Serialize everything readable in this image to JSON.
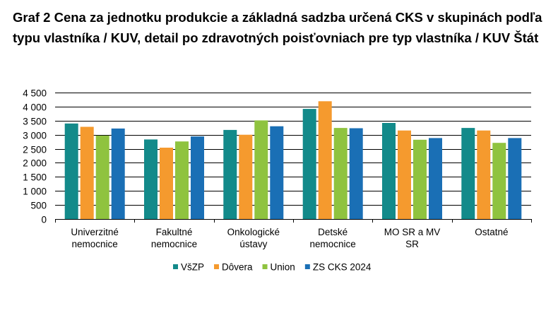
{
  "chart_data": {
    "type": "bar",
    "title": "Graf 2 Cena za jednotku produkcie a základná sadzba určená CKS v skupinách podľa typu vlastníka / KUV, detail po zdravotných poisťovniach pre typ vlastníka / KUV Štát",
    "xlabel": "",
    "ylabel": "",
    "ylim": [
      0,
      4500
    ],
    "yticks": [
      0,
      500,
      1000,
      1500,
      2000,
      2500,
      3000,
      3500,
      4000,
      4500
    ],
    "ytick_labels": [
      "0",
      "500",
      "1 000",
      "1 500",
      "2 000",
      "2 500",
      "3 000",
      "3 500",
      "4 000",
      "4 500"
    ],
    "grid": true,
    "legend_position": "bottom",
    "categories": [
      [
        "Univerzitné",
        "nemocnice"
      ],
      [
        "Fakultné",
        "nemocnice"
      ],
      [
        "Onkologické",
        "ústavy"
      ],
      [
        "Detské",
        "nemocnice"
      ],
      [
        "MO SR a MV",
        "SR"
      ],
      [
        "Ostatné"
      ]
    ],
    "series": [
      {
        "name": "VšZP",
        "color": "#138a8a",
        "values": [
          3400,
          2830,
          3170,
          3920,
          3420,
          3240
        ]
      },
      {
        "name": "Dôvera",
        "color": "#f59a2e",
        "values": [
          3280,
          2540,
          3000,
          4190,
          3150,
          3150
        ]
      },
      {
        "name": "Union",
        "color": "#8fc33f",
        "values": [
          2970,
          2760,
          3510,
          3240,
          2820,
          2710
        ]
      },
      {
        "name": "ZS CKS 2024",
        "color": "#1a6fb5",
        "values": [
          3220,
          2940,
          3300,
          3230,
          2880,
          2880
        ]
      }
    ]
  }
}
